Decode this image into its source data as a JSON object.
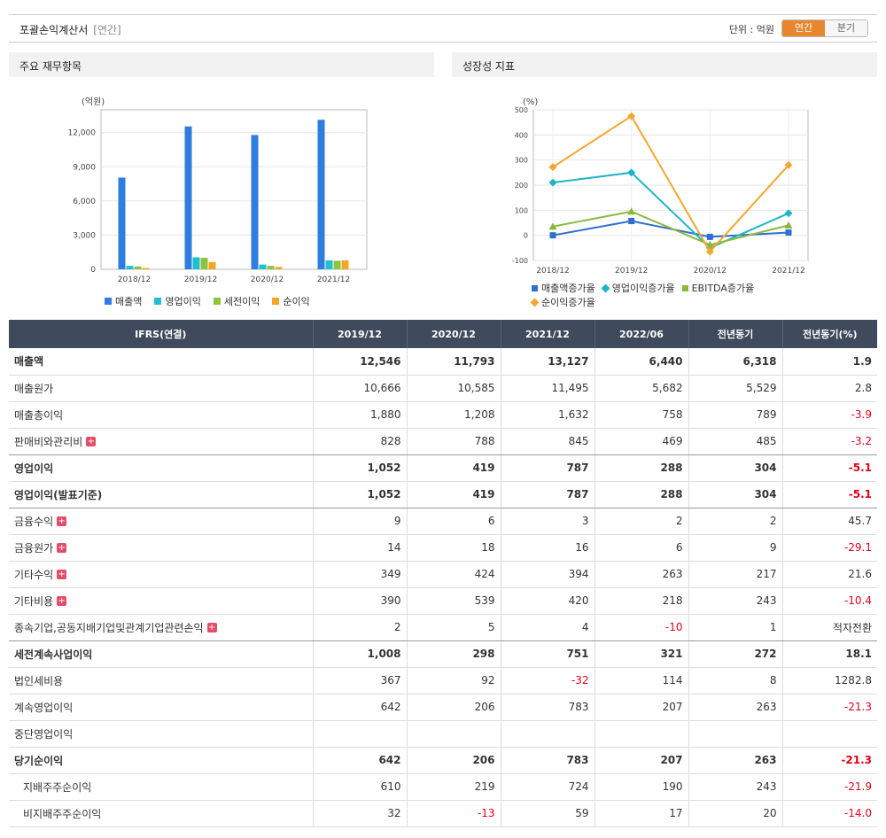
{
  "header": {
    "title": "포괄손익계산서",
    "subtitle": "[연간]",
    "unit_label": "단위 : 억원",
    "toggle_annual": "연간",
    "toggle_quarter": "분기"
  },
  "left_panel": {
    "title": "주요 재무항목"
  },
  "right_panel": {
    "title": "성장성 지표"
  },
  "chart_data": [
    {
      "type": "bar",
      "title": "주요 재무항목",
      "unit_label": "(억원)",
      "categories": [
        "2018/12",
        "2019/12",
        "2020/12",
        "2021/12"
      ],
      "ylim": [
        0,
        14000
      ],
      "yticks": [
        "0",
        "3,000",
        "6,000",
        "9,000",
        "12,000"
      ],
      "ytick_values": [
        0,
        3000,
        6000,
        9000,
        12000
      ],
      "grid": true,
      "legend_position": "bottom",
      "series": [
        {
          "name": "매출액",
          "color": "#2e7ee0",
          "values": [
            8050,
            12546,
            11793,
            13127
          ]
        },
        {
          "name": "영업이익",
          "color": "#22bfd4",
          "values": [
            300,
            1052,
            419,
            787
          ]
        },
        {
          "name": "세전이익",
          "color": "#8cc43f",
          "values": [
            250,
            1008,
            298,
            751
          ]
        },
        {
          "name": "순이익",
          "color": "#f5a623",
          "values": [
            120,
            642,
            206,
            783
          ]
        }
      ]
    },
    {
      "type": "line",
      "title": "성장성 지표",
      "unit_label": "(%)",
      "categories": [
        "2018/12",
        "2019/12",
        "2020/12",
        "2021/12"
      ],
      "ylim": [
        -100,
        500
      ],
      "yticks": [
        "-100",
        "0",
        "100",
        "200",
        "300",
        "400",
        "500"
      ],
      "ytick_values": [
        -100,
        0,
        100,
        200,
        300,
        400,
        500
      ],
      "grid": true,
      "legend_position": "bottom",
      "series": [
        {
          "name": "매출액증가율",
          "color": "#2e6fd0",
          "marker": "square",
          "values": [
            0,
            57,
            -6,
            11
          ]
        },
        {
          "name": "영업이익증가율",
          "color": "#1fb5c2",
          "marker": "diamond",
          "values": [
            210,
            250,
            -50,
            88
          ]
        },
        {
          "name": "EBITDA증가율",
          "color": "#8ab83f",
          "marker": "triangle",
          "values": [
            35,
            95,
            -38,
            40
          ]
        },
        {
          "name": "순이익증가율",
          "color": "#f2a72f",
          "marker": "diamond",
          "values": [
            272,
            475,
            -65,
            280
          ]
        }
      ]
    }
  ],
  "table": {
    "columns": [
      "IFRS(연결)",
      "2019/12",
      "2020/12",
      "2021/12",
      "2022/06",
      "전년동기",
      "전년동기(%)"
    ],
    "rows": [
      {
        "name": "매출액",
        "bold": true,
        "expand": false,
        "indent": false,
        "values": [
          "12,546",
          "11,793",
          "13,127",
          "6,440",
          "6,318",
          "1.9"
        ],
        "neg": [
          false,
          false,
          false,
          false,
          false,
          false
        ]
      },
      {
        "name": "매출원가",
        "bold": false,
        "expand": false,
        "indent": false,
        "values": [
          "10,666",
          "10,585",
          "11,495",
          "5,682",
          "5,529",
          "2.8"
        ],
        "neg": [
          false,
          false,
          false,
          false,
          false,
          false
        ]
      },
      {
        "name": "매출총이익",
        "bold": false,
        "expand": false,
        "indent": false,
        "values": [
          "1,880",
          "1,208",
          "1,632",
          "758",
          "789",
          "-3.9"
        ],
        "neg": [
          false,
          false,
          false,
          false,
          false,
          true
        ]
      },
      {
        "name": "판매비와관리비",
        "bold": false,
        "expand": true,
        "indent": false,
        "values": [
          "828",
          "788",
          "845",
          "469",
          "485",
          "-3.2"
        ],
        "neg": [
          false,
          false,
          false,
          false,
          false,
          true
        ]
      },
      {
        "name": "영업이익",
        "bold": true,
        "expand": false,
        "indent": false,
        "values": [
          "1,052",
          "419",
          "787",
          "288",
          "304",
          "-5.1"
        ],
        "neg": [
          false,
          false,
          false,
          false,
          false,
          true
        ]
      },
      {
        "name": "영업이익(발표기준)",
        "bold": true,
        "expand": false,
        "indent": false,
        "values": [
          "1,052",
          "419",
          "787",
          "288",
          "304",
          "-5.1"
        ],
        "neg": [
          false,
          false,
          false,
          false,
          false,
          true
        ]
      },
      {
        "name": "금융수익",
        "bold": false,
        "expand": true,
        "indent": false,
        "values": [
          "9",
          "6",
          "3",
          "2",
          "2",
          "45.7"
        ],
        "neg": [
          false,
          false,
          false,
          false,
          false,
          false
        ]
      },
      {
        "name": "금융원가",
        "bold": false,
        "expand": true,
        "indent": false,
        "values": [
          "14",
          "18",
          "16",
          "6",
          "9",
          "-29.1"
        ],
        "neg": [
          false,
          false,
          false,
          false,
          false,
          true
        ]
      },
      {
        "name": "기타수익",
        "bold": false,
        "expand": true,
        "indent": false,
        "values": [
          "349",
          "424",
          "394",
          "263",
          "217",
          "21.6"
        ],
        "neg": [
          false,
          false,
          false,
          false,
          false,
          false
        ]
      },
      {
        "name": "기타비용",
        "bold": false,
        "expand": true,
        "indent": false,
        "values": [
          "390",
          "539",
          "420",
          "218",
          "243",
          "-10.4"
        ],
        "neg": [
          false,
          false,
          false,
          false,
          false,
          true
        ]
      },
      {
        "name": "종속기업,공동지배기업및관계기업관련손익",
        "bold": false,
        "expand": true,
        "indent": false,
        "values": [
          "2",
          "5",
          "4",
          "-10",
          "1",
          "적자전환"
        ],
        "neg": [
          false,
          false,
          false,
          true,
          false,
          false
        ]
      },
      {
        "name": "세전계속사업이익",
        "bold": true,
        "expand": false,
        "indent": false,
        "values": [
          "1,008",
          "298",
          "751",
          "321",
          "272",
          "18.1"
        ],
        "neg": [
          false,
          false,
          false,
          false,
          false,
          false
        ]
      },
      {
        "name": "법인세비용",
        "bold": false,
        "expand": false,
        "indent": false,
        "values": [
          "367",
          "92",
          "-32",
          "114",
          "8",
          "1282.8"
        ],
        "neg": [
          false,
          false,
          true,
          false,
          false,
          false
        ]
      },
      {
        "name": "계속영업이익",
        "bold": false,
        "expand": false,
        "indent": false,
        "values": [
          "642",
          "206",
          "783",
          "207",
          "263",
          "-21.3"
        ],
        "neg": [
          false,
          false,
          false,
          false,
          false,
          true
        ]
      },
      {
        "name": "중단영업이익",
        "bold": false,
        "expand": false,
        "indent": false,
        "values": [
          "",
          "",
          "",
          "",
          "",
          ""
        ],
        "neg": [
          false,
          false,
          false,
          false,
          false,
          false
        ]
      },
      {
        "name": "당기순이익",
        "bold": true,
        "expand": false,
        "indent": false,
        "values": [
          "642",
          "206",
          "783",
          "207",
          "263",
          "-21.3"
        ],
        "neg": [
          false,
          false,
          false,
          false,
          false,
          true
        ]
      },
      {
        "name": "지배주주순이익",
        "bold": false,
        "expand": false,
        "indent": true,
        "values": [
          "610",
          "219",
          "724",
          "190",
          "243",
          "-21.9"
        ],
        "neg": [
          false,
          false,
          false,
          false,
          false,
          true
        ]
      },
      {
        "name": "비지배주주순이익",
        "bold": false,
        "expand": false,
        "indent": true,
        "values": [
          "32",
          "-13",
          "59",
          "17",
          "20",
          "-14.0"
        ],
        "neg": [
          false,
          true,
          false,
          false,
          false,
          true
        ]
      }
    ]
  }
}
